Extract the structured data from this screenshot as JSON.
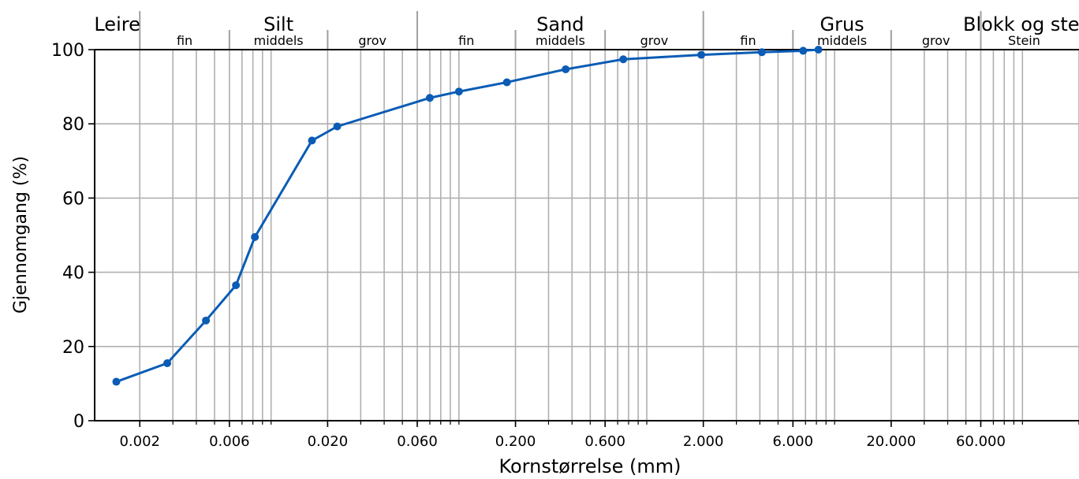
{
  "chart_data": {
    "type": "line",
    "x_scale": "log",
    "xlim": [
      0.00115,
      200
    ],
    "ylim": [
      0,
      100
    ],
    "grid": true,
    "xlabel": "Kornstørrelse (mm)",
    "ylabel": "Gjennomgang (%)",
    "x_tick_labels": [
      {
        "value": 0.002,
        "label": "0.002"
      },
      {
        "value": 0.006,
        "label": "0.006"
      },
      {
        "value": 0.02,
        "label": "0.020"
      },
      {
        "value": 0.06,
        "label": "0.060"
      },
      {
        "value": 0.2,
        "label": "0.200"
      },
      {
        "value": 0.6,
        "label": "0.600"
      },
      {
        "value": 2,
        "label": "2.000"
      },
      {
        "value": 6,
        "label": "6.000"
      },
      {
        "value": 20,
        "label": "20.000"
      },
      {
        "value": 60,
        "label": "60.000"
      }
    ],
    "y_ticks": [
      0,
      20,
      40,
      60,
      80,
      100
    ],
    "series": [
      {
        "color": "#0a5cb5",
        "x": [
          0.0015,
          0.0028,
          0.0045,
          0.0065,
          0.0082,
          0.0165,
          0.0225,
          0.07,
          0.1,
          0.18,
          0.37,
          0.75,
          1.95,
          4.1,
          6.8,
          8.2
        ],
        "y": [
          10.5,
          15.5,
          27,
          36.5,
          49.5,
          75.5,
          79.3,
          87,
          88.7,
          91.2,
          94.7,
          97.4,
          98.6,
          99.3,
          99.7,
          100
        ]
      }
    ],
    "classification": {
      "main_groups": [
        {
          "label": "Leire",
          "from": 0.00115,
          "to": 0.002
        },
        {
          "label": "Silt",
          "from": 0.002,
          "to": 0.06
        },
        {
          "label": "Sand",
          "from": 0.06,
          "to": 2
        },
        {
          "label": "Grus",
          "from": 2,
          "to": 60
        },
        {
          "label": "Blokk og stein",
          "from": 60,
          "to": 200
        }
      ],
      "sub_groups": [
        {
          "label": "fin",
          "from": 0.002,
          "to": 0.006
        },
        {
          "label": "middels",
          "from": 0.006,
          "to": 0.02
        },
        {
          "label": "grov",
          "from": 0.02,
          "to": 0.06
        },
        {
          "label": "fin",
          "from": 0.06,
          "to": 0.2
        },
        {
          "label": "middels",
          "from": 0.2,
          "to": 0.6
        },
        {
          "label": "grov",
          "from": 0.6,
          "to": 2
        },
        {
          "label": "fin",
          "from": 2,
          "to": 6
        },
        {
          "label": "middels",
          "from": 6,
          "to": 20
        },
        {
          "label": "grov",
          "from": 20,
          "to": 60
        },
        {
          "label": "Stein",
          "from": 60,
          "to": 200
        }
      ]
    }
  }
}
